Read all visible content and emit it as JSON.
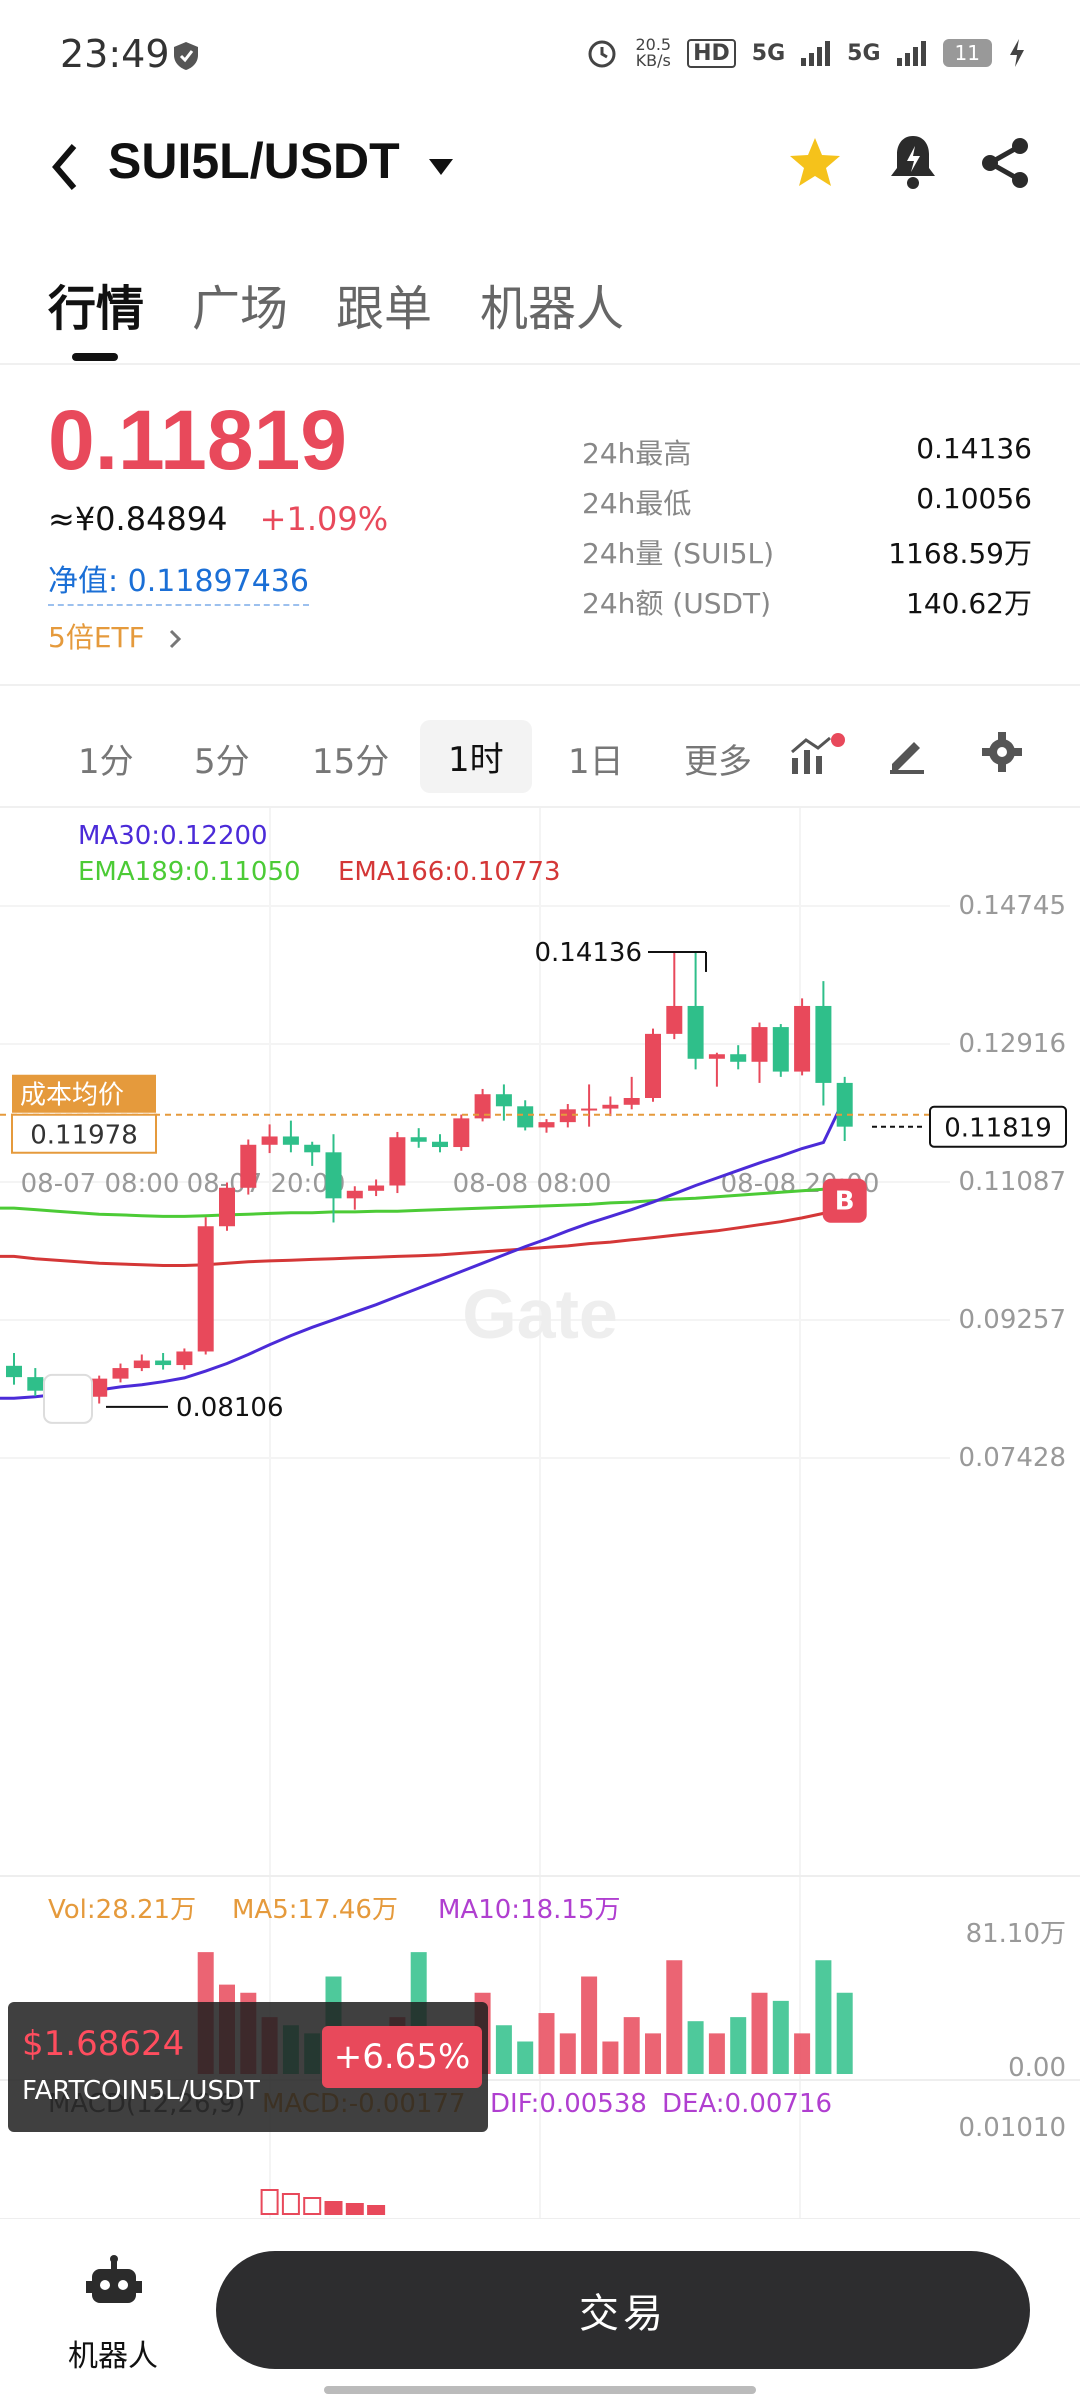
{
  "status_bar": {
    "time": "23:49",
    "net_speed_value": "20.5",
    "net_speed_unit": "KB/s",
    "hd": "HD",
    "sig1": "5G",
    "sig2": "5G",
    "battery": "11"
  },
  "header": {
    "pair": "SUI5L/USDT"
  },
  "tabs": [
    {
      "label": "行情"
    },
    {
      "label": "广场"
    },
    {
      "label": "跟单"
    },
    {
      "label": "机器人"
    }
  ],
  "ticker": {
    "price": "0.11819",
    "cny": "≈¥0.84894",
    "change": "+1.09%",
    "nav": "净值: 0.11897436",
    "etf": "5倍ETF"
  },
  "stats": [
    {
      "k": "24h最高",
      "v": "0.14136"
    },
    {
      "k": "24h最低",
      "v": "0.10056"
    },
    {
      "k": "24h量 (SUI5L)",
      "v": "1168.59万"
    },
    {
      "k": "24h额 (USDT)",
      "v": "140.62万"
    }
  ],
  "intervals": [
    "1分",
    "5分",
    "15分",
    "1时",
    "1日",
    "更多"
  ],
  "indicators": {
    "ma30": "MA30:0.12200",
    "ema189": "EMA189:0.11050",
    "ema166": "EMA166:0.10773"
  },
  "price_axis": [
    "0.14745",
    "0.12916",
    "0.11087",
    "0.09257",
    "0.07428"
  ],
  "time_axis": [
    "08-07 08:00",
    "08-07 20:00",
    "08-08 08:00",
    "08-08 20:00"
  ],
  "annotations": {
    "high": "0.14136",
    "low": "0.08106",
    "cost_label": "成本均价",
    "cost_value": "0.11978",
    "current": "0.11819",
    "buy_marker": "B",
    "watermark": "Gate"
  },
  "volume": {
    "vol": "Vol:28.21万",
    "ma5": "MA5:17.46万",
    "ma10": "MA10:18.15万",
    "axis_top": "81.10万",
    "axis_zero": "0.00"
  },
  "macd": {
    "label": "MACD(12,26,9)",
    "macd": "MACD:-0.00177",
    "dif": "DIF:0.00538",
    "dea": "DEA:0.00716",
    "axis_top": "0.01010"
  },
  "floating_ticker": {
    "price": "$1.68624",
    "pair": "FARTCOIN5L/USDT",
    "change": "+6.65%"
  },
  "bottom": {
    "robot": "机器人",
    "trade": "交易"
  },
  "colors": {
    "up": "#e8495b",
    "down": "#2fbf8a",
    "ma30": "#4b2bd8",
    "ema189": "#4ccb36",
    "ema166": "#d43737",
    "accent": "#e59a3c"
  },
  "chart_data": {
    "type": "candlestick",
    "price_range": [
      0.07428,
      0.14745
    ],
    "candles": [
      {
        "o": 0.0865,
        "h": 0.0882,
        "l": 0.084,
        "c": 0.085
      },
      {
        "o": 0.085,
        "h": 0.0862,
        "l": 0.0825,
        "c": 0.0832
      },
      {
        "o": 0.0832,
        "h": 0.0845,
        "l": 0.0812,
        "c": 0.0818
      },
      {
        "o": 0.0818,
        "h": 0.083,
        "l": 0.0811,
        "c": 0.0824
      },
      {
        "o": 0.0824,
        "h": 0.0852,
        "l": 0.0815,
        "c": 0.0848
      },
      {
        "o": 0.0848,
        "h": 0.0868,
        "l": 0.0843,
        "c": 0.0862
      },
      {
        "o": 0.0862,
        "h": 0.088,
        "l": 0.0858,
        "c": 0.0872
      },
      {
        "o": 0.0872,
        "h": 0.0882,
        "l": 0.086,
        "c": 0.0866
      },
      {
        "o": 0.0866,
        "h": 0.0888,
        "l": 0.086,
        "c": 0.0884
      },
      {
        "o": 0.0884,
        "h": 0.1062,
        "l": 0.088,
        "c": 0.105
      },
      {
        "o": 0.105,
        "h": 0.1108,
        "l": 0.1044,
        "c": 0.1101
      },
      {
        "o": 0.1101,
        "h": 0.1165,
        "l": 0.1092,
        "c": 0.1158
      },
      {
        "o": 0.1158,
        "h": 0.1185,
        "l": 0.1147,
        "c": 0.1169
      },
      {
        "o": 0.1169,
        "h": 0.119,
        "l": 0.1148,
        "c": 0.1158
      },
      {
        "o": 0.1158,
        "h": 0.1162,
        "l": 0.113,
        "c": 0.1148
      },
      {
        "o": 0.1148,
        "h": 0.1172,
        "l": 0.1055,
        "c": 0.1087
      },
      {
        "o": 0.1087,
        "h": 0.1103,
        "l": 0.1072,
        "c": 0.1097
      },
      {
        "o": 0.1097,
        "h": 0.1112,
        "l": 0.109,
        "c": 0.1104
      },
      {
        "o": 0.1104,
        "h": 0.1175,
        "l": 0.1094,
        "c": 0.1168
      },
      {
        "o": 0.1168,
        "h": 0.118,
        "l": 0.1154,
        "c": 0.1162
      },
      {
        "o": 0.1162,
        "h": 0.1172,
        "l": 0.1148,
        "c": 0.1155
      },
      {
        "o": 0.1155,
        "h": 0.1198,
        "l": 0.115,
        "c": 0.1193
      },
      {
        "o": 0.1193,
        "h": 0.1232,
        "l": 0.1189,
        "c": 0.1225
      },
      {
        "o": 0.1225,
        "h": 0.1238,
        "l": 0.119,
        "c": 0.1209
      },
      {
        "o": 0.1209,
        "h": 0.1217,
        "l": 0.1177,
        "c": 0.1181
      },
      {
        "o": 0.1181,
        "h": 0.1192,
        "l": 0.1174,
        "c": 0.1188
      },
      {
        "o": 0.1188,
        "h": 0.1212,
        "l": 0.1181,
        "c": 0.1205
      },
      {
        "o": 0.1205,
        "h": 0.1238,
        "l": 0.1182,
        "c": 0.1206
      },
      {
        "o": 0.1206,
        "h": 0.1222,
        "l": 0.1196,
        "c": 0.1211
      },
      {
        "o": 0.1211,
        "h": 0.1248,
        "l": 0.1205,
        "c": 0.122
      },
      {
        "o": 0.122,
        "h": 0.1312,
        "l": 0.1215,
        "c": 0.1305
      },
      {
        "o": 0.1305,
        "h": 0.1414,
        "l": 0.1298,
        "c": 0.1342
      },
      {
        "o": 0.1342,
        "h": 0.1414,
        "l": 0.1258,
        "c": 0.1272
      },
      {
        "o": 0.1272,
        "h": 0.128,
        "l": 0.1235,
        "c": 0.1278
      },
      {
        "o": 0.1278,
        "h": 0.129,
        "l": 0.1258,
        "c": 0.1268
      },
      {
        "o": 0.1268,
        "h": 0.132,
        "l": 0.124,
        "c": 0.1314
      },
      {
        "o": 0.1314,
        "h": 0.1318,
        "l": 0.1248,
        "c": 0.1255
      },
      {
        "o": 0.1255,
        "h": 0.1352,
        "l": 0.125,
        "c": 0.1342
      },
      {
        "o": 0.1342,
        "h": 0.1375,
        "l": 0.121,
        "c": 0.124
      },
      {
        "o": 0.124,
        "h": 0.1248,
        "l": 0.1163,
        "c": 0.1182
      }
    ],
    "ma30": [
      0.0822,
      0.0824,
      0.0827,
      0.083,
      0.0833,
      0.0837,
      0.084,
      0.0844,
      0.0849,
      0.0858,
      0.0868,
      0.088,
      0.0893,
      0.0905,
      0.0916,
      0.0926,
      0.0936,
      0.0946,
      0.0957,
      0.0968,
      0.0979,
      0.099,
      0.1001,
      0.1012,
      0.1023,
      0.1033,
      0.1044,
      0.1054,
      0.1063,
      0.1072,
      0.1082,
      0.1093,
      0.1104,
      0.1114,
      0.1124,
      0.1134,
      0.1143,
      0.1153,
      0.1161,
      0.122
    ],
    "ema189": [
      0.1074,
      0.1072,
      0.107,
      0.1068,
      0.1066,
      0.1065,
      0.1064,
      0.1063,
      0.1063,
      0.1064,
      0.1065,
      0.1066,
      0.1067,
      0.1068,
      0.1068,
      0.1069,
      0.1069,
      0.107,
      0.107,
      0.1071,
      0.1072,
      0.1073,
      0.1074,
      0.1075,
      0.1076,
      0.1077,
      0.1078,
      0.1079,
      0.1081,
      0.1082,
      0.1084,
      0.1086,
      0.1087,
      0.1089,
      0.1091,
      0.1093,
      0.1095,
      0.1097,
      0.1099,
      0.1105
    ],
    "ema166": [
      0.101,
      0.1007,
      0.1005,
      0.1003,
      0.1001,
      0.1,
      0.0999,
      0.0998,
      0.0998,
      0.0999,
      0.1001,
      0.1003,
      0.1004,
      0.1005,
      0.1006,
      0.1007,
      0.1008,
      0.1009,
      0.101,
      0.1011,
      0.1012,
      0.1014,
      0.1016,
      0.1018,
      0.102,
      0.1022,
      0.1024,
      0.1027,
      0.1029,
      0.1032,
      0.1035,
      0.1038,
      0.1041,
      0.1044,
      0.1048,
      0.1052,
      0.1056,
      0.1061,
      0.1067,
      0.1077
    ],
    "volumes": [
      0,
      0,
      0,
      0,
      0,
      0,
      0,
      0,
      0,
      30,
      22,
      20,
      14,
      12,
      10,
      24,
      8,
      6,
      14,
      30,
      11,
      9,
      20,
      12,
      8,
      15,
      10,
      24,
      8,
      14,
      10,
      28,
      13,
      10,
      14,
      20,
      18,
      10,
      28,
      20
    ],
    "macd_hist": [
      0,
      0,
      0,
      0,
      0,
      0,
      0,
      0,
      0,
      0,
      0,
      0,
      1.2,
      1.0,
      0.8,
      0.6,
      0.5,
      0.4,
      0,
      0,
      0,
      0,
      0,
      0,
      0,
      0,
      0,
      0,
      0,
      0,
      0,
      0,
      0,
      0,
      0,
      0,
      0,
      0,
      0,
      0
    ]
  }
}
